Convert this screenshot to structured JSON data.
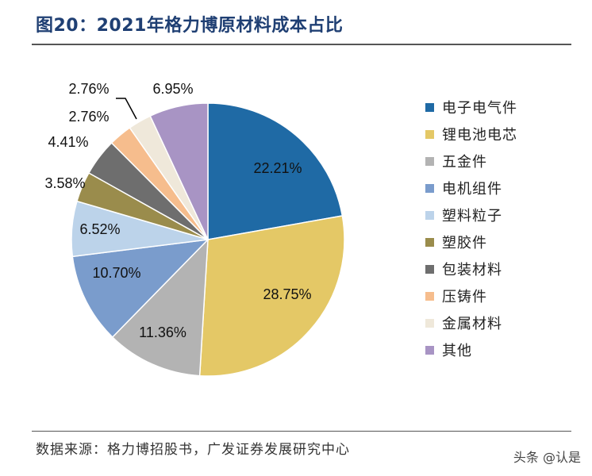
{
  "header": {
    "title": "图20：2021年格力博原材料成本占比"
  },
  "footer": {
    "source": "数据来源：格力博招股书，广发证券发展研究中心",
    "watermark": "头条 @认是"
  },
  "chart_data": {
    "type": "pie",
    "title": "2021年格力博原材料成本占比",
    "slices": [
      {
        "label": "电子电气件",
        "value": 22.21,
        "value_label": "22.21%",
        "color": "#1f6aa5"
      },
      {
        "label": "锂电池电芯",
        "value": 28.75,
        "value_label": "28.75%",
        "color": "#e4c866"
      },
      {
        "label": "五金件",
        "value": 11.36,
        "value_label": "11.36%",
        "color": "#b3b3b3"
      },
      {
        "label": "电机组件",
        "value": 10.7,
        "value_label": "10.70%",
        "color": "#7a9ccc"
      },
      {
        "label": "塑料粒子",
        "value": 6.52,
        "value_label": "6.52%",
        "color": "#bcd3ea"
      },
      {
        "label": "塑胶件",
        "value": 3.58,
        "value_label": "3.58%",
        "color": "#9a8c4c"
      },
      {
        "label": "包装材料",
        "value": 4.41,
        "value_label": "4.41%",
        "color": "#6e6e6e"
      },
      {
        "label": "压铸件",
        "value": 2.76,
        "value_label": "2.76%",
        "color": "#f6bd8d"
      },
      {
        "label": "金属材料",
        "value": 2.76,
        "value_label": "2.76%",
        "color": "#efe8da"
      },
      {
        "label": "其他",
        "value": 6.95,
        "value_label": "6.95%",
        "color": "#a894c4"
      }
    ],
    "legend_position": "right"
  }
}
